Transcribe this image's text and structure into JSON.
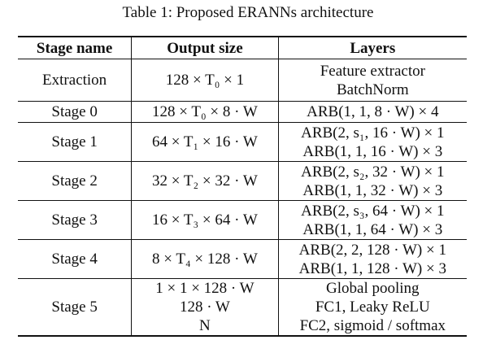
{
  "caption": "Table 1: Proposed ERANNs architecture",
  "headers": {
    "stage": "Stage name",
    "output": "Output size",
    "layers": "Layers"
  },
  "rows": [
    {
      "stage": "Extraction",
      "output": [
        "128 × T₀ × 1"
      ],
      "layers": [
        "Feature extractor",
        "BatchNorm"
      ]
    },
    {
      "stage": "Stage 0",
      "output": [
        "128 × T₀ × 8 · W"
      ],
      "layers": [
        "ARB(1, 1, 8 · W) × 4"
      ]
    },
    {
      "stage": "Stage 1",
      "output": [
        "64 × T₁ × 16 · W"
      ],
      "layers": [
        "ARB(2, s₁, 16 · W) × 1",
        "ARB(1, 1, 16 · W) × 3"
      ]
    },
    {
      "stage": "Stage 2",
      "output": [
        "32 × T₂ × 32 · W"
      ],
      "layers": [
        "ARB(2, s₂, 32 · W) × 1",
        "ARB(1, 1, 32 · W) × 3"
      ]
    },
    {
      "stage": "Stage 3",
      "output": [
        "16 × T₃ × 64 · W"
      ],
      "layers": [
        "ARB(2, s₃, 64 · W) × 1",
        "ARB(1, 1, 64 · W) × 3"
      ]
    },
    {
      "stage": "Stage 4",
      "output": [
        "8 × T₄ × 128 · W"
      ],
      "layers": [
        "ARB(2, 2, 128 · W) × 1",
        "ARB(1, 1, 128 · W) × 3"
      ]
    },
    {
      "stage": "Stage 5",
      "output": [
        "1 × 1 × 128 · W",
        "128 · W",
        "N"
      ],
      "layers": [
        "Global pooling",
        "FC1, Leaky ReLU",
        "FC2, sigmoid / softmax"
      ]
    }
  ]
}
